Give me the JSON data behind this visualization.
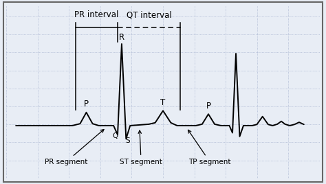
{
  "bg_color": "#e8edf5",
  "grid_color": "#9aa8c8",
  "ecg_color": "#000000",
  "border_color": "#888888",
  "figsize": [
    4.74,
    2.68
  ],
  "dpi": 100,
  "xlim": [
    0,
    10
  ],
  "ylim": [
    -2.2,
    5.0
  ],
  "bl": 0.0,
  "pr_left_x": 2.2,
  "pr_right_x": 3.55,
  "qt_right_x": 5.55,
  "bracket_top_y": 4.3,
  "bracket_tick": 0.2
}
